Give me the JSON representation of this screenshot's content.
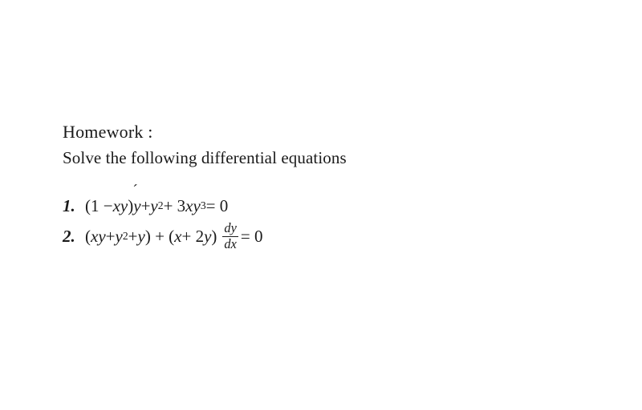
{
  "heading": "Homework :",
  "subheading": "Solve the following differential equations",
  "items": [
    {
      "num": "1.",
      "p1": "(1 − ",
      "p2": "xy",
      "p3": ")",
      "yprime": "y",
      "accent": "́",
      "p4": " + ",
      "p5": "y",
      "e1": "2",
      "p6": " + 3",
      "p7": "xy",
      "e2": "3",
      "p8": " = 0"
    },
    {
      "num": "2.",
      "p1": "(",
      "p2": "xy",
      "p3": " + ",
      "p4": "y",
      "e1": "2",
      "p5": " + ",
      "p6": "y",
      "p7": ") + (",
      "p8": "x",
      "p9": " + 2",
      "p10": "y",
      "p11": ")",
      "frac_top": "dy",
      "frac_bot": "dx",
      "p12": " = 0"
    }
  ],
  "colors": {
    "text": "#1a1a1a",
    "background": "#ffffff"
  },
  "font": {
    "family": "Times New Roman",
    "heading_size_pt": 16,
    "body_size_pt": 15
  }
}
